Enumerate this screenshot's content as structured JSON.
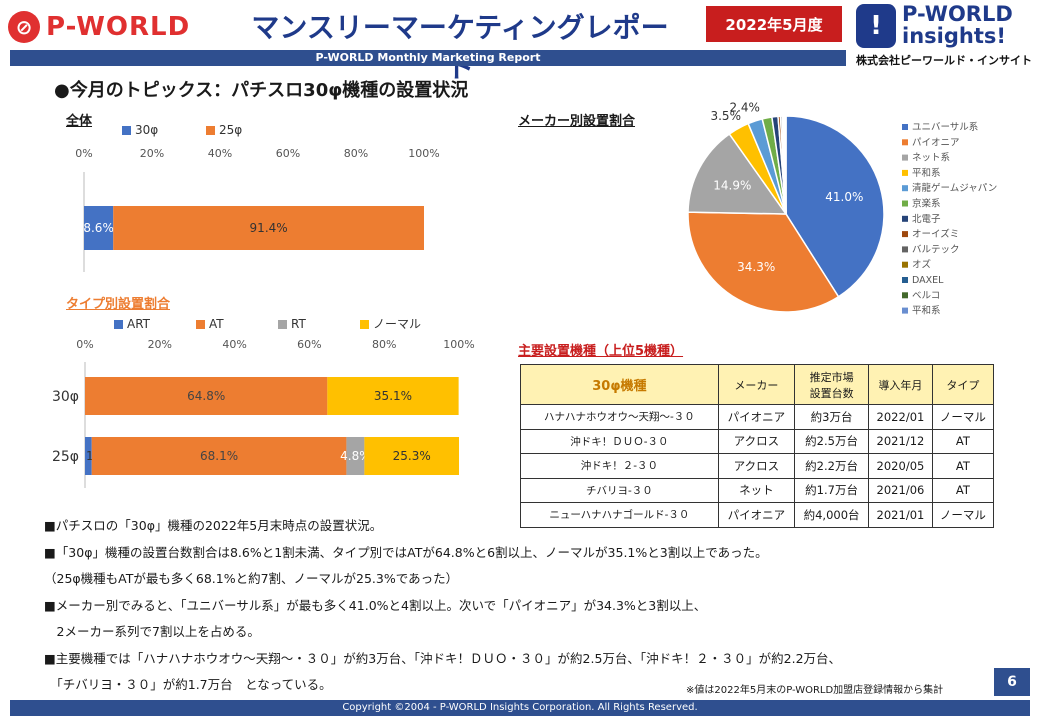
{
  "header": {
    "logo_left": "P-WORLD",
    "title": "マンスリーマーケティングレポート",
    "date": "2022年5月度",
    "logo_right_line1": "P-WORLD",
    "logo_right_line2": "insights!",
    "company": "株式会社ピーワールド・インサイト",
    "subtitle": "P-WORLD Monthly Marketing Report"
  },
  "topic": "●今月のトピックス：パチスロ30φ機種の設置状況",
  "colors": {
    "blue": "#4472c4",
    "orange": "#ed7d31",
    "gray": "#a5a5a5",
    "yellow": "#ffc000",
    "ltblue": "#5b9bd5",
    "green": "#70ad47",
    "navy": "#264478",
    "brown": "#9e480e",
    "dkgray": "#636363",
    "olive": "#997300",
    "steel": "#255e91",
    "dkgreen": "#43682b",
    "periwinkle": "#698ed0",
    "header_blue": "#2f4f8f",
    "red": "#c81e1e"
  },
  "chart_data": [
    {
      "id": "overall",
      "title": "全体",
      "type": "bar",
      "orientation": "horizontal",
      "stacked": "percent",
      "categories": [
        ""
      ],
      "xlim": [
        0,
        100
      ],
      "ticks": [
        "0%",
        "20%",
        "40%",
        "60%",
        "80%",
        "100%"
      ],
      "legend_position": "top",
      "series": [
        {
          "name": "30φ",
          "values": [
            8.6
          ],
          "labels": [
            "8.6%"
          ]
        },
        {
          "name": "25φ",
          "values": [
            91.4
          ],
          "labels": [
            "91.4%"
          ]
        }
      ]
    },
    {
      "id": "type",
      "title": "タイプ別設置割合",
      "type": "bar",
      "orientation": "horizontal",
      "stacked": "percent",
      "categories": [
        "30φ",
        "25φ"
      ],
      "xlim": [
        0,
        100
      ],
      "ticks": [
        "0%",
        "20%",
        "40%",
        "60%",
        "80%",
        "100%"
      ],
      "legend_position": "top",
      "series": [
        {
          "name": "ART",
          "values": [
            0.0,
            1.8
          ],
          "labels": [
            "0.0%",
            "1.8%"
          ]
        },
        {
          "name": "AT",
          "values": [
            64.8,
            68.1
          ],
          "labels": [
            "64.8%",
            "68.1%"
          ]
        },
        {
          "name": "RT",
          "values": [
            0.0,
            4.8
          ],
          "labels": [
            "0.0%",
            "4.8%"
          ]
        },
        {
          "name": "ノーマル",
          "values": [
            35.1,
            25.3
          ],
          "labels": [
            "35.1%",
            "25.3%"
          ]
        }
      ]
    },
    {
      "id": "maker",
      "title": "メーカー別設置割合",
      "type": "pie",
      "legend_position": "right",
      "slices": [
        {
          "name": "ユニバーサル系",
          "value": 41.0,
          "label": "41.0%"
        },
        {
          "name": "パイオニア",
          "value": 34.3,
          "label": "34.3%"
        },
        {
          "name": "ネット系",
          "value": 14.9,
          "label": "14.9%"
        },
        {
          "name": "平和系",
          "value": 3.5,
          "label": "3.5%"
        },
        {
          "name": "清龍ゲームジャパン",
          "value": 2.4,
          "label": "2.4%"
        },
        {
          "name": "京楽系",
          "value": 1.6,
          "label": ""
        },
        {
          "name": "北電子",
          "value": 1.0,
          "label": ""
        },
        {
          "name": "オーイズミ",
          "value": 0.4,
          "label": ""
        },
        {
          "name": "バルテック",
          "value": 0.3,
          "label": ""
        },
        {
          "name": "オズ",
          "value": 0.2,
          "label": ""
        },
        {
          "name": "DAXEL",
          "value": 0.2,
          "label": ""
        },
        {
          "name": "ベルコ",
          "value": 0.1,
          "label": ""
        },
        {
          "name": "平和系",
          "value": 0.1,
          "label": ""
        }
      ]
    }
  ],
  "table": {
    "title": "主要設置機種（上位5機種）",
    "headers": [
      "30φ機種",
      "メーカー",
      "推定市場\n設置台数",
      "導入年月",
      "タイプ"
    ],
    "rows": [
      [
        "ハナハナホウオウ〜天翔〜-３０",
        "パイオニア",
        "約3万台",
        "2022/01",
        "ノーマル"
      ],
      [
        "沖ドキ！ＤＵＯ-３０",
        "アクロス",
        "約2.5万台",
        "2021/12",
        "AT"
      ],
      [
        "沖ドキ！２-３０",
        "アクロス",
        "約2.2万台",
        "2020/05",
        "AT"
      ],
      [
        "チバリヨ-３０",
        "ネット",
        "約1.7万台",
        "2021/06",
        "AT"
      ],
      [
        "ニューハナハナゴールド-３０",
        "パイオニア",
        "約4,000台",
        "2021/01",
        "ノーマル"
      ]
    ]
  },
  "bullets": [
    "■パチスロの「30φ」機種の2022年5月末時点の設置状況。",
    "■「30φ」機種の設置台数割合は8.6%と1割未満、タイプ別ではATが64.8%と6割以上、ノーマルが35.1%と3割以上であった。",
    "（25φ機種もATが最も多く68.1%と約7割、ノーマルが25.3%であった）",
    "■メーカー別でみると、「ユニバーサル系」が最も多く41.0%と4割以上。次いで「パイオニア」が34.3%と3割以上、",
    "　2メーカー系列で7割以上を占める。",
    "■主要機種では「ハナハナホウオウ〜天翔〜・３０」が約3万台、「沖ドキ！ＤＵＯ・３０」が約2.5万台、「沖ドキ！２・３０」が約2.2万台、",
    "　「チバリヨ・３０」が約1.7万台　となっている。"
  ],
  "note": "※値は2022年5月末のP-WORLD加盟店登録情報から集計",
  "page_number": "6",
  "footer": "Copyright ©2004 - P-WORLD Insights Corporation. All Rights Reserved."
}
